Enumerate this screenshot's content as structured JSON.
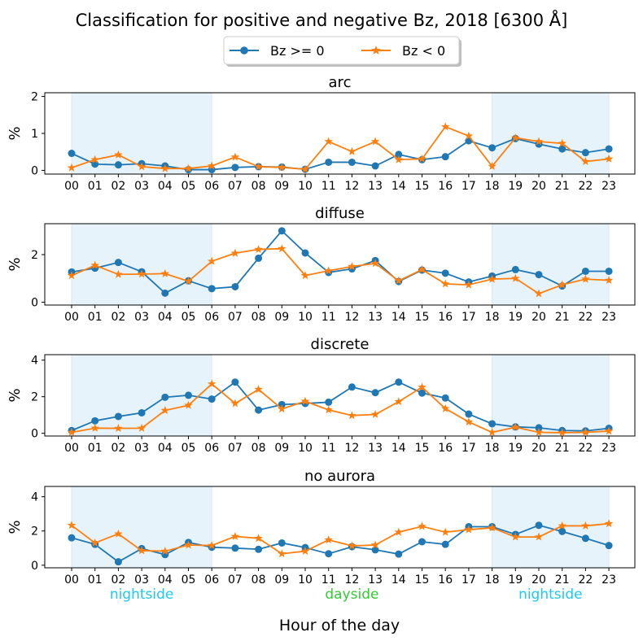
{
  "figure": {
    "title": "Classification for positive and negative Bz, 2018 [6300 Å]",
    "xlabel": "Hour of the day",
    "region_labels": [
      {
        "text": "nightside",
        "color": "#1ec8f0",
        "hour_center": 3
      },
      {
        "text": "dayside",
        "color": "#33cc33",
        "hour_center": 12
      },
      {
        "text": "nightside",
        "color": "#1ec8f0",
        "hour_center": 20.5
      }
    ],
    "shaded_hours": [
      [
        0,
        6
      ],
      [
        18,
        23
      ]
    ],
    "shade_color": "#e6f3fb",
    "legend": [
      {
        "label": "Bz >= 0",
        "color": "#1f77b4",
        "marker": "circle"
      },
      {
        "label": "Bz < 0",
        "color": "#ff7f0e",
        "marker": "star"
      }
    ]
  },
  "chart_data": [
    {
      "type": "line",
      "title": "arc",
      "ylabel": "%",
      "categories": [
        "00",
        "01",
        "02",
        "03",
        "04",
        "05",
        "06",
        "07",
        "08",
        "09",
        "10",
        "11",
        "12",
        "13",
        "14",
        "15",
        "16",
        "17",
        "18",
        "19",
        "20",
        "21",
        "22",
        "23"
      ],
      "ylim": [
        -0.1,
        2.1
      ],
      "yticks": [
        0,
        1,
        2
      ],
      "series": [
        {
          "name": "Bz >= 0",
          "values": [
            0.46,
            0.17,
            0.15,
            0.18,
            0.12,
            0.02,
            0.02,
            0.08,
            0.1,
            0.09,
            0.03,
            0.22,
            0.22,
            0.12,
            0.43,
            0.29,
            0.37,
            0.8,
            0.61,
            0.86,
            0.71,
            0.58,
            0.48,
            0.58
          ]
        },
        {
          "name": "Bz < 0",
          "values": [
            0.07,
            0.29,
            0.42,
            0.1,
            0.05,
            0.05,
            0.12,
            0.36,
            0.1,
            0.08,
            0.03,
            0.78,
            0.51,
            0.78,
            0.29,
            0.31,
            1.18,
            0.93,
            0.11,
            0.88,
            0.78,
            0.73,
            0.24,
            0.31
          ]
        }
      ]
    },
    {
      "type": "line",
      "title": "diffuse",
      "ylabel": "%",
      "categories": [
        "00",
        "01",
        "02",
        "03",
        "04",
        "05",
        "06",
        "07",
        "08",
        "09",
        "10",
        "11",
        "12",
        "13",
        "14",
        "15",
        "16",
        "17",
        "18",
        "19",
        "20",
        "21",
        "22",
        "23"
      ],
      "ylim": [
        -0.12,
        3.3
      ],
      "yticks": [
        0,
        2
      ],
      "series": [
        {
          "name": "Bz >= 0",
          "values": [
            1.27,
            1.43,
            1.67,
            1.28,
            0.38,
            0.9,
            0.57,
            0.65,
            1.85,
            3.0,
            2.07,
            1.25,
            1.4,
            1.75,
            0.87,
            1.35,
            1.22,
            0.85,
            1.1,
            1.37,
            1.16,
            0.68,
            1.3,
            1.3
          ]
        },
        {
          "name": "Bz < 0",
          "values": [
            1.12,
            1.55,
            1.17,
            1.18,
            1.2,
            0.88,
            1.72,
            2.06,
            2.22,
            2.25,
            1.12,
            1.32,
            1.5,
            1.63,
            0.9,
            1.37,
            0.77,
            0.73,
            0.97,
            1.0,
            0.36,
            0.73,
            0.97,
            0.92
          ]
        }
      ]
    },
    {
      "type": "line",
      "title": "discrete",
      "ylabel": "%",
      "categories": [
        "00",
        "01",
        "02",
        "03",
        "04",
        "05",
        "06",
        "07",
        "08",
        "09",
        "10",
        "11",
        "12",
        "13",
        "14",
        "15",
        "16",
        "17",
        "18",
        "19",
        "20",
        "21",
        "22",
        "23"
      ],
      "ylim": [
        -0.15,
        4.3
      ],
      "yticks": [
        0,
        2,
        4
      ],
      "series": [
        {
          "name": "Bz >= 0",
          "values": [
            0.15,
            0.68,
            0.92,
            1.12,
            1.97,
            2.08,
            1.87,
            2.8,
            1.27,
            1.57,
            1.63,
            1.7,
            2.53,
            2.22,
            2.8,
            2.2,
            1.93,
            1.05,
            0.52,
            0.35,
            0.3,
            0.15,
            0.13,
            0.27
          ]
        },
        {
          "name": "Bz < 0",
          "values": [
            0.05,
            0.28,
            0.27,
            0.28,
            1.25,
            1.53,
            2.7,
            1.63,
            2.4,
            1.33,
            1.75,
            1.28,
            0.97,
            1.03,
            1.73,
            2.52,
            1.35,
            0.62,
            0.05,
            0.33,
            0.05,
            0.03,
            0.05,
            0.12
          ]
        }
      ]
    },
    {
      "type": "line",
      "title": "no aurora",
      "ylabel": "%",
      "categories": [
        "00",
        "01",
        "02",
        "03",
        "04",
        "05",
        "06",
        "07",
        "08",
        "09",
        "10",
        "11",
        "12",
        "13",
        "14",
        "15",
        "16",
        "17",
        "18",
        "19",
        "20",
        "21",
        "22",
        "23"
      ],
      "ylim": [
        -0.15,
        4.6
      ],
      "yticks": [
        0,
        2,
        4
      ],
      "series": [
        {
          "name": "Bz >= 0",
          "values": [
            1.6,
            1.22,
            0.2,
            0.97,
            0.62,
            1.33,
            1.05,
            1.0,
            0.93,
            1.3,
            1.03,
            0.67,
            1.08,
            0.9,
            0.65,
            1.37,
            1.22,
            2.25,
            2.25,
            1.8,
            2.33,
            1.97,
            1.57,
            1.15
          ]
        },
        {
          "name": "Bz < 0",
          "values": [
            2.33,
            1.3,
            1.83,
            0.85,
            0.82,
            1.18,
            1.15,
            1.68,
            1.57,
            0.67,
            0.82,
            1.48,
            1.13,
            1.18,
            1.93,
            2.27,
            1.93,
            2.08,
            2.18,
            1.65,
            1.65,
            2.3,
            2.3,
            2.43
          ]
        }
      ]
    }
  ]
}
